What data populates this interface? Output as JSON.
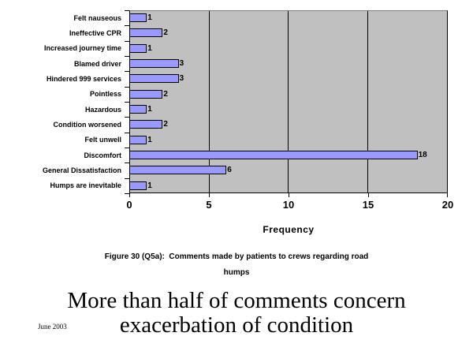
{
  "slide": {
    "date_note": "June 2003",
    "title_lines": [
      "More than half of comments concern",
      "exacerbation of condition"
    ],
    "caption_lines": [
      "Figure 30 (Q5a):  Comments made by patients to crews regarding road",
      "humps"
    ]
  },
  "chart_data": {
    "type": "bar",
    "orientation": "horizontal",
    "categories": [
      "Felt nauseous",
      "Ineffective CPR",
      "Increased journey time",
      "Blamed driver",
      "Hindered 999 services",
      "Pointless",
      "Hazardous",
      "Condition worsened",
      "Felt unwell",
      "Discomfort",
      "General Dissatisfaction",
      "Humps are inevitable"
    ],
    "values": [
      1,
      2,
      1,
      3,
      3,
      2,
      1,
      2,
      1,
      18,
      6,
      1
    ],
    "value_labels_shown": true,
    "xlabel": "Frequency",
    "xticks": [
      0,
      5,
      10,
      15,
      20
    ],
    "xlim": [
      0,
      20
    ],
    "grid": true,
    "gridline_values": [
      5,
      10,
      15
    ],
    "legend": "none",
    "colors": {
      "bar_fill": "#9999ff",
      "bar_border": "#000000",
      "plot_background": "#c0c0c0",
      "gridline": "#000000",
      "text": "#000000",
      "slide_background": "#ffffff"
    }
  }
}
